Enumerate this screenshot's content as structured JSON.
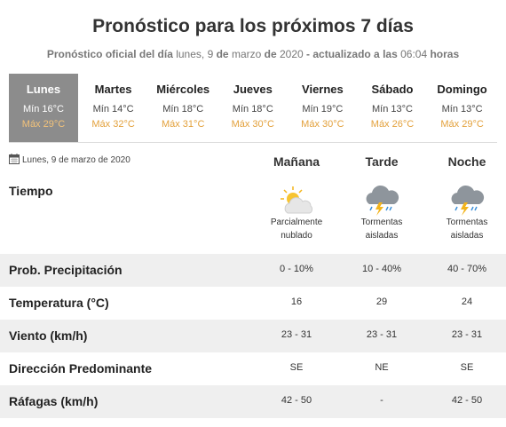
{
  "header": {
    "title": "Pronóstico para los próximos 7 días",
    "subtitle": [
      "Pronóstico oficial del día",
      "lunes, 9",
      "de",
      "marzo",
      "de",
      "2020",
      "- actualizado a las",
      "06:04",
      "horas"
    ]
  },
  "days": [
    {
      "name": "Lunes",
      "min": "Mín 16°C",
      "max": "Máx 29°C"
    },
    {
      "name": "Martes",
      "min": "Mín 14°C",
      "max": "Máx 32°C"
    },
    {
      "name": "Miércoles",
      "min": "Mín 18°C",
      "max": "Máx 31°C"
    },
    {
      "name": "Jueves",
      "min": "Mín 18°C",
      "max": "Máx 30°C"
    },
    {
      "name": "Viernes",
      "min": "Mín 19°C",
      "max": "Máx 30°C"
    },
    {
      "name": "Sábado",
      "min": "Mín 13°C",
      "max": "Máx 26°C"
    },
    {
      "name": "Domingo",
      "min": "Mín 13°C",
      "max": "Máx 29°C"
    }
  ],
  "detail": {
    "date": "Lunes, 9 de marzo de 2020",
    "columns": [
      "Mañana",
      "Tarde",
      "Noche"
    ],
    "weather": {
      "label": "Tiempo",
      "values": [
        [
          "Parcialmente",
          "nublado"
        ],
        [
          "Tormentas",
          "aisladas"
        ],
        [
          "Tormentas",
          "aisladas"
        ]
      ]
    },
    "rows": [
      {
        "label": "Prob. Precipitación",
        "values": [
          "0 - 10%",
          "10 - 40%",
          "40 - 70%"
        ]
      },
      {
        "label": "Temperatura (°C)",
        "values": [
          "16",
          "29",
          "24"
        ]
      },
      {
        "label": "Viento (km/h)",
        "values": [
          "23 - 31",
          "23 - 31",
          "23 - 31"
        ]
      },
      {
        "label": "Dirección Predominante",
        "values": [
          "SE",
          "NE",
          "SE"
        ]
      },
      {
        "label": "Ráfagas (km/h)",
        "values": [
          "42 - 50",
          "-",
          "42 - 50"
        ]
      }
    ]
  }
}
